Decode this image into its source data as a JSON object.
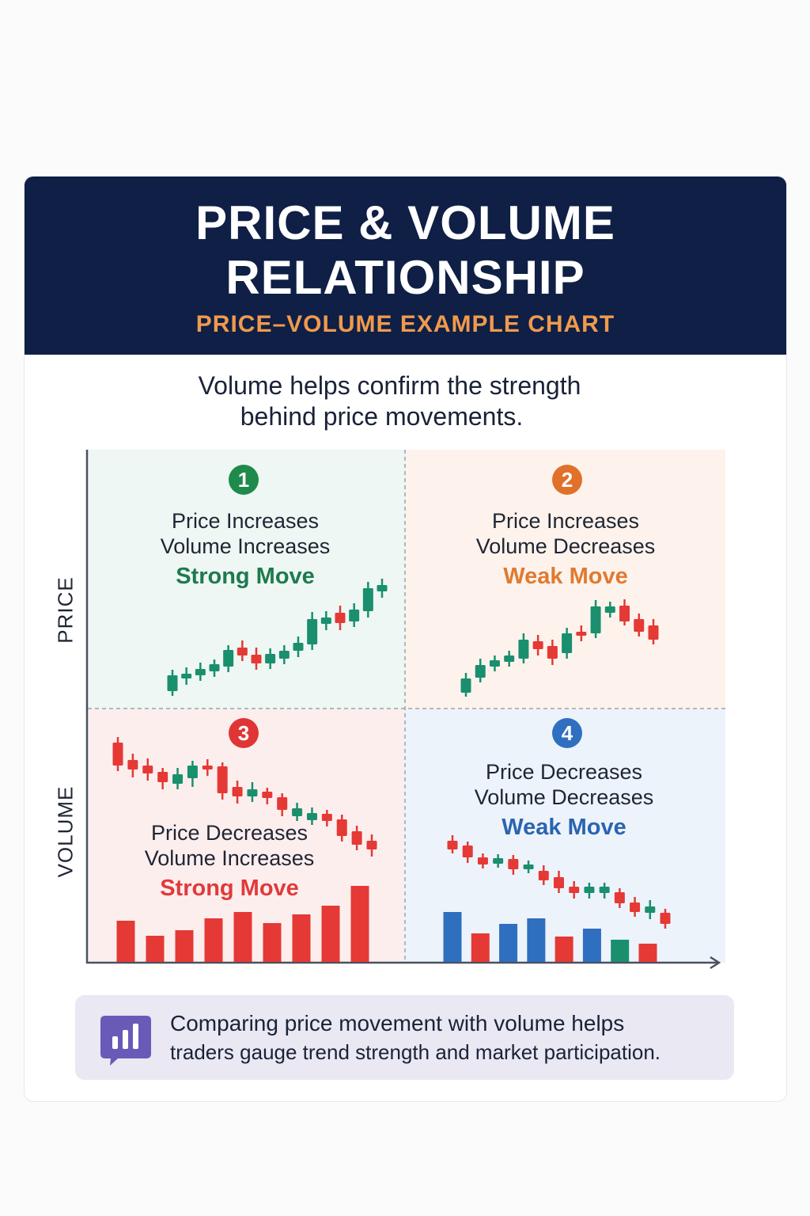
{
  "header": {
    "title_line1": "PRICE & VOLUME",
    "title_line2": "RELATIONSHIP",
    "subtitle": "PRICE–VOLUME EXAMPLE CHART"
  },
  "intro": {
    "line1": "Volume helps confirm the strength",
    "line2": "behind price movements."
  },
  "axes": {
    "y_top": "PRICE",
    "y_bottom": "VOLUME"
  },
  "colors": {
    "navy": "#0f1f45",
    "up": "#1a8f6e",
    "down": "#e53935",
    "q1": "#1e8a4c",
    "q2": "#e0702a",
    "q3": "#e03535",
    "q4": "#2f6fbf"
  },
  "quadrants": [
    {
      "number": "1",
      "line1": "Price Increases",
      "line2": "Volume Increases",
      "verdict": "Strong Move",
      "candles": [
        [
          427,
          447,
          454,
          421
        ],
        [
          443,
          449,
          457,
          435
        ],
        [
          447,
          455,
          463,
          440
        ],
        [
          452,
          461,
          467,
          445
        ],
        [
          458,
          479,
          485,
          451
        ],
        [
          482,
          472,
          491,
          465
        ],
        [
          473,
          462,
          482,
          454
        ],
        [
          462,
          474,
          481,
          455
        ],
        [
          468,
          478,
          485,
          461
        ],
        [
          478,
          488,
          496,
          470
        ],
        [
          486,
          518,
          527,
          479
        ],
        [
          512,
          520,
          528,
          504
        ],
        [
          526,
          513,
          535,
          504
        ],
        [
          515,
          530,
          538,
          508
        ],
        [
          528,
          557,
          565,
          520
        ],
        [
          553,
          561,
          569,
          545
        ]
      ],
      "volume": []
    },
    {
      "number": "2",
      "line1": "Price Increases",
      "line2": "Volume Decreases",
      "verdict": "Weak Move",
      "candles": [
        [
          425,
          443,
          450,
          420
        ],
        [
          444,
          460,
          468,
          438
        ],
        [
          458,
          466,
          472,
          452
        ],
        [
          464,
          472,
          478,
          458
        ],
        [
          468,
          492,
          500,
          462
        ],
        [
          490,
          480,
          498,
          472
        ],
        [
          484,
          468,
          492,
          460
        ],
        [
          475,
          500,
          507,
          468
        ],
        [
          502,
          497,
          510,
          490
        ],
        [
          500,
          534,
          542,
          494
        ],
        [
          526,
          534,
          540,
          520
        ],
        [
          535,
          515,
          543,
          510
        ],
        [
          518,
          502,
          525,
          496
        ],
        [
          510,
          492,
          518,
          486
        ]
      ],
      "volume": []
    },
    {
      "number": "3",
      "line1": "Price Decreases",
      "line2": "Volume Increases",
      "verdict": "Strong Move",
      "candles": [
        [
          362,
          333,
          369,
          326
        ],
        [
          340,
          328,
          348,
          318
        ],
        [
          333,
          323,
          342,
          314
        ],
        [
          325,
          312,
          330,
          303
        ],
        [
          310,
          322,
          330,
          303
        ],
        [
          317,
          333,
          339,
          306
        ],
        [
          333,
          328,
          341,
          320
        ],
        [
          332,
          298,
          337,
          290
        ],
        [
          306,
          294,
          314,
          285
        ],
        [
          294,
          303,
          312,
          287
        ],
        [
          300,
          292,
          305,
          284
        ],
        [
          293,
          277,
          298,
          269
        ],
        [
          269,
          279,
          286,
          263
        ],
        [
          264,
          273,
          280,
          258
        ],
        [
          272,
          263,
          277,
          256
        ],
        [
          265,
          244,
          271,
          237
        ],
        [
          250,
          233,
          257,
          226
        ],
        [
          238,
          227,
          246,
          218
        ]
      ],
      "volume": [
        {
          "v": 52,
          "c": "down"
        },
        {
          "v": 33,
          "c": "down"
        },
        {
          "v": 40,
          "c": "down"
        },
        {
          "v": 55,
          "c": "down"
        },
        {
          "v": 63,
          "c": "down"
        },
        {
          "v": 49,
          "c": "down"
        },
        {
          "v": 60,
          "c": "down"
        },
        {
          "v": 71,
          "c": "down"
        },
        {
          "v": 96,
          "c": "down"
        }
      ]
    },
    {
      "number": "4",
      "line1": "Price Decreases",
      "line2": "Volume Decreases",
      "verdict": "Weak Move",
      "candles": [
        [
          238,
          227,
          245,
          222
        ],
        [
          232,
          217,
          237,
          210
        ],
        [
          217,
          208,
          222,
          203
        ],
        [
          209,
          216,
          221,
          204
        ],
        [
          215,
          202,
          220,
          195
        ],
        [
          202,
          208,
          213,
          197
        ],
        [
          200,
          188,
          207,
          182
        ],
        [
          192,
          178,
          200,
          172
        ],
        [
          180,
          172,
          187,
          165
        ],
        [
          172,
          180,
          185,
          165
        ],
        [
          172,
          180,
          185,
          165
        ],
        [
          173,
          159,
          178,
          153
        ],
        [
          160,
          148,
          167,
          142
        ],
        [
          147,
          155,
          163,
          139
        ],
        [
          147,
          133,
          152,
          127
        ]
      ],
      "volume": [
        {
          "v": 63,
          "c": "blue"
        },
        {
          "v": 36,
          "c": "down"
        },
        {
          "v": 48,
          "c": "blue"
        },
        {
          "v": 55,
          "c": "blue"
        },
        {
          "v": 32,
          "c": "down"
        },
        {
          "v": 42,
          "c": "blue"
        },
        {
          "v": 28,
          "c": "up"
        },
        {
          "v": 23,
          "c": "down"
        }
      ]
    }
  ],
  "footer": {
    "icon": "bar-chart-speech-bubble-icon",
    "line1": "Comparing price movement with volume helps",
    "line2": "traders gauge trend strength and market participation."
  }
}
